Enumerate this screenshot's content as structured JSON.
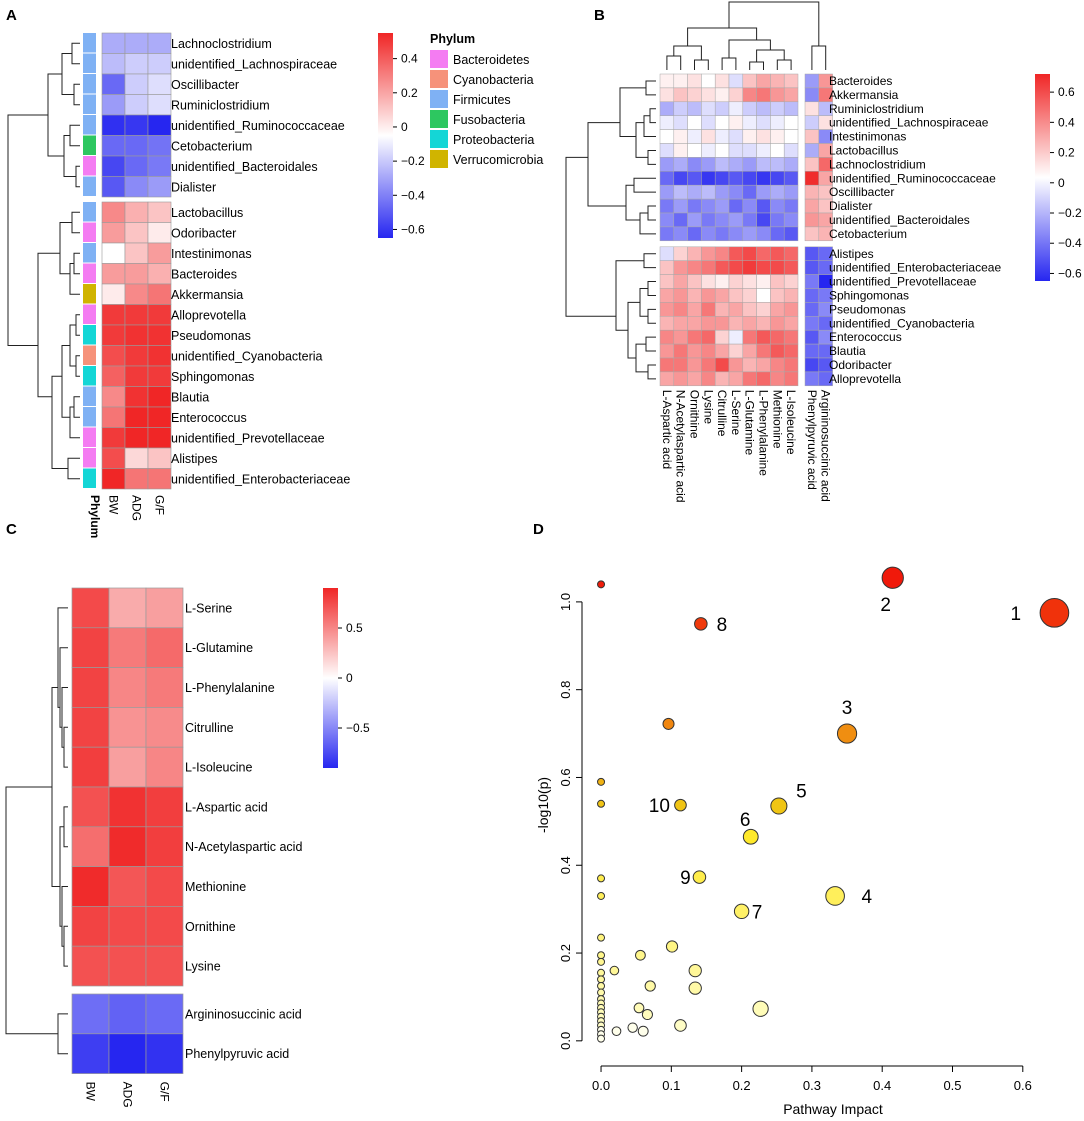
{
  "chart_data": [
    {
      "panel": "A",
      "type": "heatmap",
      "title": "",
      "rows": [
        "Lachnoclostridium",
        "unidentified_Lachnospiraceae",
        "Oscillibacter",
        "Ruminiclostridium",
        "unidentified_Ruminococcaceae",
        "Cetobacterium",
        "unidentified_Bacteroidales",
        "Dialister",
        "Lactobacillus",
        "Odoribacter",
        "Intestinimonas",
        "Bacteroides",
        "Akkermansia",
        "Alloprevotella",
        "Pseudomonas",
        "unidentified_Cyanobacteria",
        "Sphingomonas",
        "Blautia",
        "Enterococcus",
        "unidentified_Prevotellaceae",
        "Alistipes",
        "unidentified_Enterobacteriaceae"
      ],
      "row_phylum": [
        "Firmicutes",
        "Firmicutes",
        "Firmicutes",
        "Firmicutes",
        "Firmicutes",
        "Fusobacteria",
        "Bacteroidetes",
        "Firmicutes",
        "Firmicutes",
        "Bacteroidetes",
        "Firmicutes",
        "Bacteroidetes",
        "Verrucomicrobia",
        "Bacteroidetes",
        "Proteobacteria",
        "Cyanobacteria",
        "Proteobacteria",
        "Firmicutes",
        "Firmicutes",
        "Bacteroidetes",
        "Bacteroidetes",
        "Proteobacteria"
      ],
      "columns": [
        "BW",
        "ADG",
        "G/F"
      ],
      "annotation_label": "Phylum",
      "values": [
        [
          -0.25,
          -0.25,
          -0.25
        ],
        [
          -0.2,
          -0.15,
          -0.15
        ],
        [
          -0.45,
          -0.15,
          -0.1
        ],
        [
          -0.3,
          -0.15,
          -0.1
        ],
        [
          -0.62,
          -0.6,
          -0.68
        ],
        [
          -0.45,
          -0.45,
          -0.42
        ],
        [
          -0.55,
          -0.45,
          -0.4
        ],
        [
          -0.5,
          -0.35,
          -0.3
        ],
        [
          0.3,
          0.2,
          0.15
        ],
        [
          0.25,
          0.15,
          0.05
        ],
        [
          0.0,
          0.15,
          0.25
        ],
        [
          0.25,
          0.25,
          0.2
        ],
        [
          0.05,
          0.3,
          0.35
        ],
        [
          0.5,
          0.5,
          0.5
        ],
        [
          0.5,
          0.52,
          0.52
        ],
        [
          0.45,
          0.5,
          0.52
        ],
        [
          0.4,
          0.5,
          0.5
        ],
        [
          0.3,
          0.52,
          0.6
        ],
        [
          0.35,
          0.55,
          0.6
        ],
        [
          0.5,
          0.58,
          0.58
        ],
        [
          0.45,
          0.1,
          0.15
        ],
        [
          0.55,
          0.35,
          0.35
        ]
      ],
      "color_range": [
        -0.65,
        0.55
      ],
      "colorbar_ticks": [
        {
          "value": 0.4,
          "label": "0.4"
        },
        {
          "value": 0.2,
          "label": "0.2"
        },
        {
          "value": 0,
          "label": "0"
        },
        {
          "value": -0.2,
          "label": "−0.2"
        },
        {
          "value": -0.4,
          "label": "−0.4"
        },
        {
          "value": -0.6,
          "label": "−0.6"
        }
      ],
      "legend": {
        "title": "Phylum",
        "entries": [
          {
            "name": "Bacteroidetes",
            "color": "#F47CF2"
          },
          {
            "name": "Cyanobacteria",
            "color": "#F6927A"
          },
          {
            "name": "Firmicutes",
            "color": "#7FB1F4"
          },
          {
            "name": "Fusobacteria",
            "color": "#2DC760"
          },
          {
            "name": "Proteobacteria",
            "color": "#14D6D6"
          },
          {
            "name": "Verrucomicrobia",
            "color": "#D0B400"
          }
        ]
      }
    },
    {
      "panel": "B",
      "type": "heatmap",
      "title": "",
      "rows": [
        "Bacteroides",
        "Akkermansia",
        "Ruminiclostridium",
        "unidentified_Lachnospiraceae",
        "Intestinimonas",
        "Lactobacillus",
        "Lachnoclostridium",
        "unidentified_Ruminococcaceae",
        "Oscillibacter",
        "Dialister",
        "unidentified_Bacteroidales",
        "Cetobacterium",
        "Alistipes",
        "unidentified_Enterobacteriaceae",
        "unidentified_Prevotellaceae",
        "Sphingomonas",
        "Pseudomonas",
        "unidentified_Cyanobacteria",
        "Enterococcus",
        "Blautia",
        "Odoribacter",
        "Alloprevotella"
      ],
      "columns": [
        "L-Aspartic acid",
        "N-Acetylaspartic acid",
        "Ornithine",
        "Lysine",
        "Citrulline",
        "L-Serine",
        "L-Glutamine",
        "L-Phenylalanine",
        "Methionine",
        "L-Isoleucine",
        "Phenylpyruvic acid",
        "Argininosuccinic acid"
      ],
      "values": [
        [
          0.05,
          0.05,
          0.1,
          0.0,
          0.1,
          -0.1,
          0.2,
          0.3,
          0.25,
          0.2,
          -0.3,
          0.35
        ],
        [
          0.1,
          0.2,
          0.15,
          0.1,
          0.05,
          0.15,
          0.4,
          0.45,
          0.35,
          0.3,
          -0.35,
          0.45
        ],
        [
          -0.25,
          -0.15,
          -0.2,
          -0.1,
          -0.15,
          -0.05,
          -0.15,
          -0.2,
          -0.15,
          -0.2,
          0.1,
          -0.2
        ],
        [
          -0.05,
          -0.1,
          0.0,
          -0.1,
          0.0,
          0.05,
          -0.05,
          -0.1,
          -0.05,
          0.0,
          -0.15,
          0.1
        ],
        [
          0.0,
          0.05,
          -0.05,
          0.1,
          -0.05,
          -0.1,
          0.05,
          0.1,
          0.05,
          0.0,
          0.2,
          -0.35
        ],
        [
          -0.1,
          0.05,
          0.0,
          -0.05,
          0.0,
          -0.1,
          -0.1,
          -0.05,
          0.0,
          -0.1,
          -0.25,
          0.3
        ],
        [
          -0.3,
          -0.25,
          -0.35,
          -0.3,
          -0.2,
          -0.25,
          -0.3,
          -0.2,
          -0.2,
          -0.25,
          0.2,
          0.5
        ],
        [
          -0.45,
          -0.55,
          -0.5,
          -0.6,
          -0.55,
          -0.5,
          -0.55,
          -0.6,
          -0.55,
          -0.5,
          0.7,
          0.3
        ],
        [
          -0.3,
          -0.2,
          -0.25,
          -0.2,
          -0.3,
          -0.35,
          -0.45,
          -0.3,
          -0.25,
          -0.3,
          0.25,
          0.2
        ],
        [
          -0.4,
          -0.3,
          -0.4,
          -0.35,
          -0.3,
          -0.45,
          -0.35,
          -0.5,
          -0.35,
          -0.4,
          0.3,
          0.2
        ],
        [
          -0.35,
          -0.45,
          -0.3,
          -0.4,
          -0.35,
          -0.3,
          -0.4,
          -0.55,
          -0.4,
          -0.35,
          0.35,
          0.3
        ],
        [
          -0.4,
          -0.35,
          -0.45,
          -0.35,
          -0.4,
          -0.35,
          -0.3,
          -0.35,
          -0.45,
          -0.5,
          0.2,
          0.25
        ],
        [
          -0.1,
          0.15,
          0.25,
          0.35,
          0.4,
          0.55,
          0.6,
          0.5,
          0.55,
          0.5,
          -0.5,
          -0.45
        ],
        [
          0.2,
          0.35,
          0.4,
          0.45,
          0.55,
          0.6,
          0.65,
          0.6,
          0.6,
          0.55,
          -0.5,
          -0.45
        ],
        [
          0.2,
          0.3,
          0.2,
          0.1,
          0.05,
          0.15,
          0.1,
          0.05,
          0.2,
          0.15,
          -0.4,
          -0.65
        ],
        [
          0.3,
          0.35,
          0.25,
          0.35,
          0.3,
          0.2,
          0.15,
          0.0,
          0.2,
          0.25,
          -0.45,
          -0.4
        ],
        [
          0.35,
          0.4,
          0.3,
          0.45,
          0.25,
          0.3,
          0.2,
          0.15,
          0.3,
          0.35,
          -0.45,
          -0.35
        ],
        [
          0.25,
          0.3,
          0.3,
          0.35,
          0.35,
          0.25,
          0.3,
          0.25,
          0.35,
          0.3,
          -0.4,
          -0.45
        ],
        [
          0.4,
          0.35,
          0.45,
          0.5,
          0.15,
          -0.05,
          0.45,
          0.55,
          0.5,
          0.45,
          -0.5,
          -0.35
        ],
        [
          0.35,
          0.45,
          0.35,
          0.4,
          0.3,
          0.15,
          0.3,
          0.45,
          0.55,
          0.5,
          -0.45,
          -0.45
        ],
        [
          0.45,
          0.45,
          0.35,
          0.45,
          0.6,
          0.35,
          0.25,
          0.3,
          0.4,
          0.45,
          -0.55,
          -0.5
        ],
        [
          0.3,
          0.35,
          0.3,
          0.4,
          0.25,
          0.3,
          0.45,
          0.5,
          0.4,
          0.45,
          -0.4,
          -0.45
        ]
      ],
      "color_range": [
        -0.65,
        0.72
      ],
      "colorbar_ticks": [
        {
          "value": 0.6,
          "label": "0.6"
        },
        {
          "value": 0.4,
          "label": "0.4"
        },
        {
          "value": 0.2,
          "label": "0.2"
        },
        {
          "value": 0,
          "label": "0"
        },
        {
          "value": -0.2,
          "label": "−0.2"
        },
        {
          "value": -0.4,
          "label": "−0.4"
        },
        {
          "value": -0.6,
          "label": "−0.6"
        }
      ]
    },
    {
      "panel": "C",
      "type": "heatmap",
      "title": "",
      "rows": [
        "L-Serine",
        "L-Glutamine",
        "L-Phenylalanine",
        "Citrulline",
        "L-Isoleucine",
        "L-Aspartic acid",
        "N-Acetylaspartic acid",
        "Methionine",
        "Ornithine",
        "Lysine",
        "Argininosuccinic acid",
        "Phenylpyruvic acid"
      ],
      "columns": [
        "BW",
        "ADG",
        "G/F"
      ],
      "values": [
        [
          0.75,
          0.35,
          0.4
        ],
        [
          0.78,
          0.55,
          0.62
        ],
        [
          0.78,
          0.5,
          0.55
        ],
        [
          0.78,
          0.45,
          0.48
        ],
        [
          0.8,
          0.4,
          0.5
        ],
        [
          0.72,
          0.85,
          0.8
        ],
        [
          0.6,
          0.88,
          0.8
        ],
        [
          0.88,
          0.7,
          0.75
        ],
        [
          0.78,
          0.75,
          0.75
        ],
        [
          0.72,
          0.72,
          0.72
        ],
        [
          -0.6,
          -0.65,
          -0.62
        ],
        [
          -0.8,
          -0.9,
          -0.85
        ]
      ],
      "color_range": [
        -0.9,
        0.9
      ],
      "colorbar_ticks": [
        {
          "value": 0.5,
          "label": "0.5"
        },
        {
          "value": 0,
          "label": "0"
        },
        {
          "value": -0.5,
          "label": "−0.5"
        }
      ]
    },
    {
      "panel": "D",
      "type": "scatter",
      "title": "",
      "xlabel": "Pathway Impact",
      "ylabel": "-log10(p)",
      "xlim": [
        -0.01,
        0.67
      ],
      "ylim": [
        -0.03,
        1.1
      ],
      "xticks": [
        0.0,
        0.1,
        0.2,
        0.3,
        0.4,
        0.5,
        0.6
      ],
      "xtick_labels": [
        "0.0",
        "0.1",
        "0.2",
        "0.3",
        "0.4",
        "0.5",
        "0.6"
      ],
      "yticks": [
        0.0,
        0.2,
        0.4,
        0.6,
        0.8,
        1.0
      ],
      "ytick_labels": [
        "0.0",
        "0.2",
        "0.4",
        "0.6",
        "0.8",
        "1.0"
      ],
      "points": [
        {
          "x": 0.645,
          "y": 0.975,
          "label": "1",
          "lx": -0.055,
          "ly": 0
        },
        {
          "x": 0.415,
          "y": 1.055,
          "label": "2",
          "lx": -0.01,
          "ly": -0.06
        },
        {
          "x": 0.35,
          "y": 0.7,
          "label": "3",
          "lx": 0.0,
          "ly": 0.06
        },
        {
          "x": 0.333,
          "y": 0.33,
          "label": "4",
          "lx": 0.045,
          "ly": 0
        },
        {
          "x": 0.253,
          "y": 0.535,
          "label": "5",
          "lx": 0.032,
          "ly": 0.035
        },
        {
          "x": 0.213,
          "y": 0.465,
          "label": "6",
          "lx": -0.008,
          "ly": 0.04
        },
        {
          "x": 0.2,
          "y": 0.295,
          "label": "7",
          "lx": 0.022,
          "ly": 0
        },
        {
          "x": 0.142,
          "y": 0.95,
          "label": "8",
          "lx": 0.03,
          "ly": 0
        },
        {
          "x": 0.14,
          "y": 0.373,
          "label": "9",
          "lx": -0.02,
          "ly": 0
        },
        {
          "x": 0.113,
          "y": 0.537,
          "label": "10",
          "lx": -0.03,
          "ly": 0
        },
        {
          "x": 0.0,
          "y": 1.04,
          "label": ""
        },
        {
          "x": 0.096,
          "y": 0.722,
          "label": ""
        },
        {
          "x": 0.0,
          "y": 0.59,
          "label": ""
        },
        {
          "x": 0.0,
          "y": 0.54,
          "label": ""
        },
        {
          "x": 0.0,
          "y": 0.37,
          "label": ""
        },
        {
          "x": 0.0,
          "y": 0.33,
          "label": ""
        },
        {
          "x": 0.0,
          "y": 0.235,
          "label": ""
        },
        {
          "x": 0.101,
          "y": 0.215,
          "label": ""
        },
        {
          "x": 0.0,
          "y": 0.195,
          "label": ""
        },
        {
          "x": 0.056,
          "y": 0.195,
          "label": ""
        },
        {
          "x": 0.0,
          "y": 0.18,
          "label": ""
        },
        {
          "x": 0.019,
          "y": 0.16,
          "label": ""
        },
        {
          "x": 0.134,
          "y": 0.16,
          "label": ""
        },
        {
          "x": 0.0,
          "y": 0.155,
          "label": ""
        },
        {
          "x": 0.0,
          "y": 0.14,
          "label": ""
        },
        {
          "x": 0.0,
          "y": 0.125,
          "label": ""
        },
        {
          "x": 0.07,
          "y": 0.125,
          "label": ""
        },
        {
          "x": 0.134,
          "y": 0.12,
          "label": ""
        },
        {
          "x": 0.0,
          "y": 0.11,
          "label": ""
        },
        {
          "x": 0.0,
          "y": 0.095,
          "label": ""
        },
        {
          "x": 0.0,
          "y": 0.085,
          "label": ""
        },
        {
          "x": 0.0,
          "y": 0.075,
          "label": ""
        },
        {
          "x": 0.054,
          "y": 0.075,
          "label": ""
        },
        {
          "x": 0.227,
          "y": 0.073,
          "label": ""
        },
        {
          "x": 0.0,
          "y": 0.065,
          "label": ""
        },
        {
          "x": 0.066,
          "y": 0.06,
          "label": ""
        },
        {
          "x": 0.0,
          "y": 0.055,
          "label": ""
        },
        {
          "x": 0.0,
          "y": 0.045,
          "label": ""
        },
        {
          "x": 0.0,
          "y": 0.035,
          "label": ""
        },
        {
          "x": 0.113,
          "y": 0.035,
          "label": ""
        },
        {
          "x": 0.045,
          "y": 0.03,
          "label": ""
        },
        {
          "x": 0.0,
          "y": 0.025,
          "label": ""
        },
        {
          "x": 0.022,
          "y": 0.022,
          "label": ""
        },
        {
          "x": 0.06,
          "y": 0.022,
          "label": ""
        },
        {
          "x": 0.0,
          "y": 0.015,
          "label": ""
        },
        {
          "x": 0.0,
          "y": 0.005,
          "label": ""
        }
      ]
    }
  ],
  "panel_labels": [
    "A",
    "B",
    "C",
    "D"
  ]
}
